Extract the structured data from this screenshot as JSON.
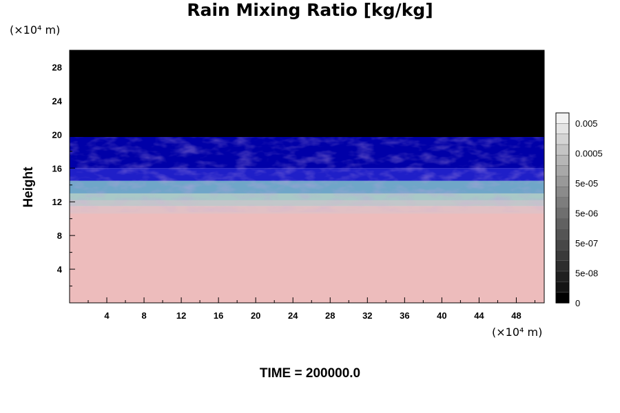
{
  "chart_data": {
    "type": "heatmap",
    "title": "Rain Mixing Ratio [kg/kg]",
    "ylabel": "Height",
    "x_unit": "(×10⁴ m)",
    "y_unit": "(×10⁴ m)",
    "xlim": [
      0,
      51
    ],
    "ylim": [
      0,
      30
    ],
    "x_ticks": [
      4,
      8,
      12,
      16,
      20,
      24,
      28,
      32,
      36,
      40,
      44,
      48
    ],
    "y_ticks": [
      4,
      8,
      12,
      16,
      20,
      24,
      28
    ],
    "colorbar": {
      "labels": [
        "0.005",
        "0.0005",
        "5e-05",
        "5e-06",
        "5e-07",
        "5e-08",
        "0"
      ],
      "colors": [
        "#f2f2f2",
        "#e4e4e4",
        "#d4d4d4",
        "#c4c4c4",
        "#b6b6b6",
        "#a8a8a8",
        "#999999",
        "#8b8b8b",
        "#7d7d7d",
        "#6f6f6f",
        "#616161",
        "#545454",
        "#474747",
        "#3a3a3a",
        "#2d2d2d",
        "#202020",
        "#141414",
        "#000000"
      ]
    },
    "bands": [
      {
        "from": 0,
        "to": 11.5,
        "color": "#edbcbc"
      },
      {
        "from": 11.5,
        "to": 13,
        "color": "#a9c9c7"
      },
      {
        "from": 13,
        "to": 14.5,
        "color": "#6fa6c8"
      },
      {
        "from": 14.5,
        "to": 16,
        "color": "#1f1fc8"
      },
      {
        "from": 16,
        "to": 19.7,
        "color": "#0000a8"
      },
      {
        "from": 19.7,
        "to": 30,
        "color": "#000000"
      }
    ]
  },
  "footer": {
    "time_label": "TIME = 200000.0"
  }
}
